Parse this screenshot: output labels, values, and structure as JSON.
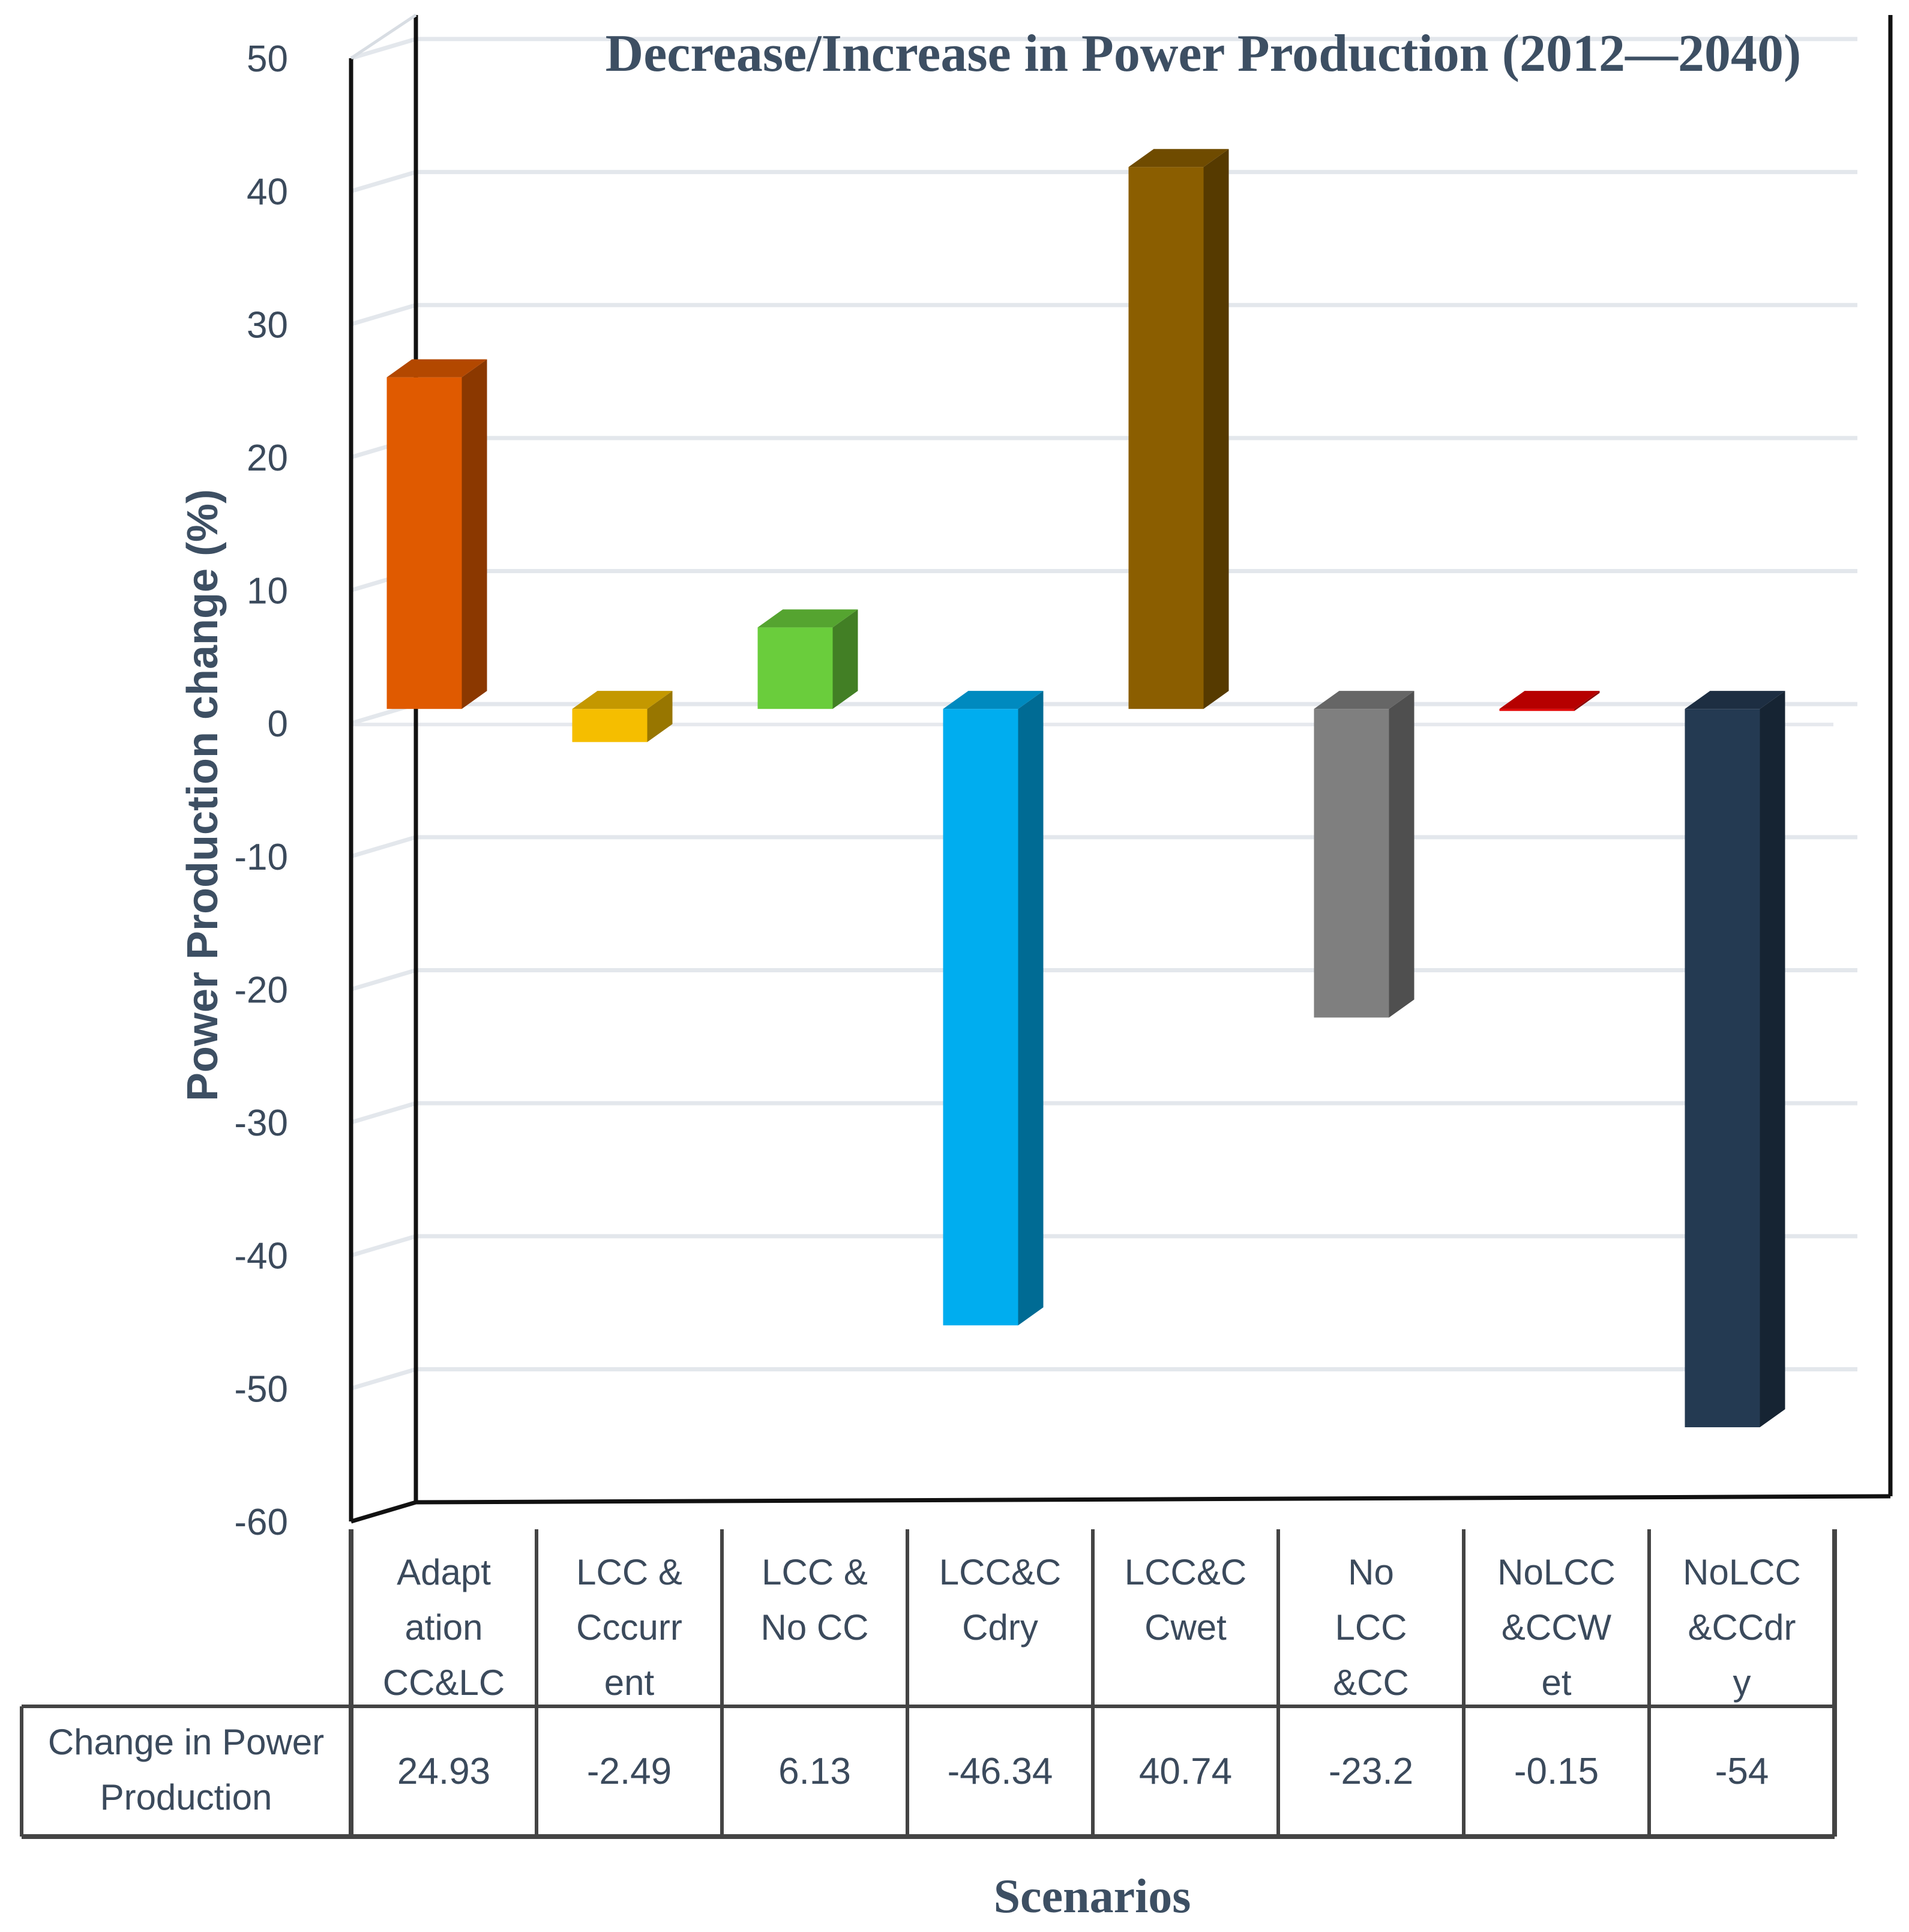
{
  "chart_data": {
    "type": "bar",
    "title": "Decrease/Increase in Power Production (2012—2040)",
    "xlabel": "Scenarios",
    "ylabel": "Power Production change (%)",
    "ylim": [
      -60,
      50
    ],
    "yticks": [
      50,
      40,
      30,
      20,
      10,
      0,
      -10,
      -20,
      -30,
      -40,
      -50,
      -60
    ],
    "grid": true,
    "categories": [
      [
        "Adapt",
        "ation",
        "CC&LC"
      ],
      [
        "LCC &",
        "Cccurr",
        "ent"
      ],
      [
        "LCC &",
        "No CC"
      ],
      [
        "LCC&C",
        "Cdry"
      ],
      [
        "LCC&C",
        "Cwet"
      ],
      [
        "No",
        "LCC",
        "&CC"
      ],
      [
        "NoLCC",
        "&CCW",
        "et"
      ],
      [
        "NoLCC",
        "&CCdr",
        "y"
      ]
    ],
    "series": [
      {
        "name": "Change in Power Production",
        "name_lines": [
          "Change in Power",
          "Production"
        ],
        "values": [
          24.93,
          -2.49,
          6.13,
          -46.34,
          40.74,
          -23.2,
          -0.15,
          -54
        ],
        "value_labels": [
          "24.93",
          "-2.49",
          "6.13",
          "-46.34",
          "40.74",
          "-23.2",
          "-0.15",
          "-54"
        ]
      }
    ],
    "colors": [
      "#e05a00",
      "#f5be00",
      "#6acd3c",
      "#00adef",
      "#8b5e00",
      "#7f7f7f",
      "#e30000",
      "#243a52"
    ]
  }
}
